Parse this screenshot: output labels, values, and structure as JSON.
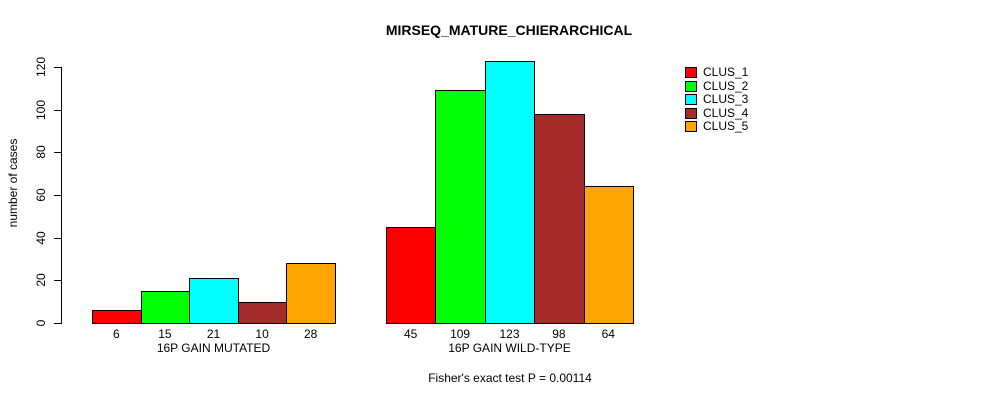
{
  "chart_data": {
    "type": "bar",
    "title": "MIRSEQ_MATURE_CHIERARCHICAL",
    "ylabel": "number of cases",
    "xlabel": "",
    "ylim": [
      0,
      120
    ],
    "yticks": [
      0,
      20,
      40,
      60,
      80,
      100,
      120
    ],
    "grid": false,
    "legend_position": "top-right",
    "categories": [
      "16P GAIN MUTATED",
      "16P GAIN WILD-TYPE"
    ],
    "series": [
      {
        "name": "CLUS_1",
        "color": "#FF0000",
        "values": [
          6,
          45
        ]
      },
      {
        "name": "CLUS_2",
        "color": "#00FF00",
        "values": [
          15,
          109
        ]
      },
      {
        "name": "CLUS_3",
        "color": "#00FFFF",
        "values": [
          21,
          123
        ]
      },
      {
        "name": "CLUS_4",
        "color": "#A52A2A",
        "values": [
          10,
          98
        ]
      },
      {
        "name": "CLUS_5",
        "color": "#FFA500",
        "values": [
          28,
          64
        ]
      }
    ],
    "show_bar_values": true,
    "annotation": "Fisher's exact test P = 0.00114",
    "bar_border_color": "#000000",
    "text_color": "#000000",
    "background_color": "#FFFFFF"
  }
}
